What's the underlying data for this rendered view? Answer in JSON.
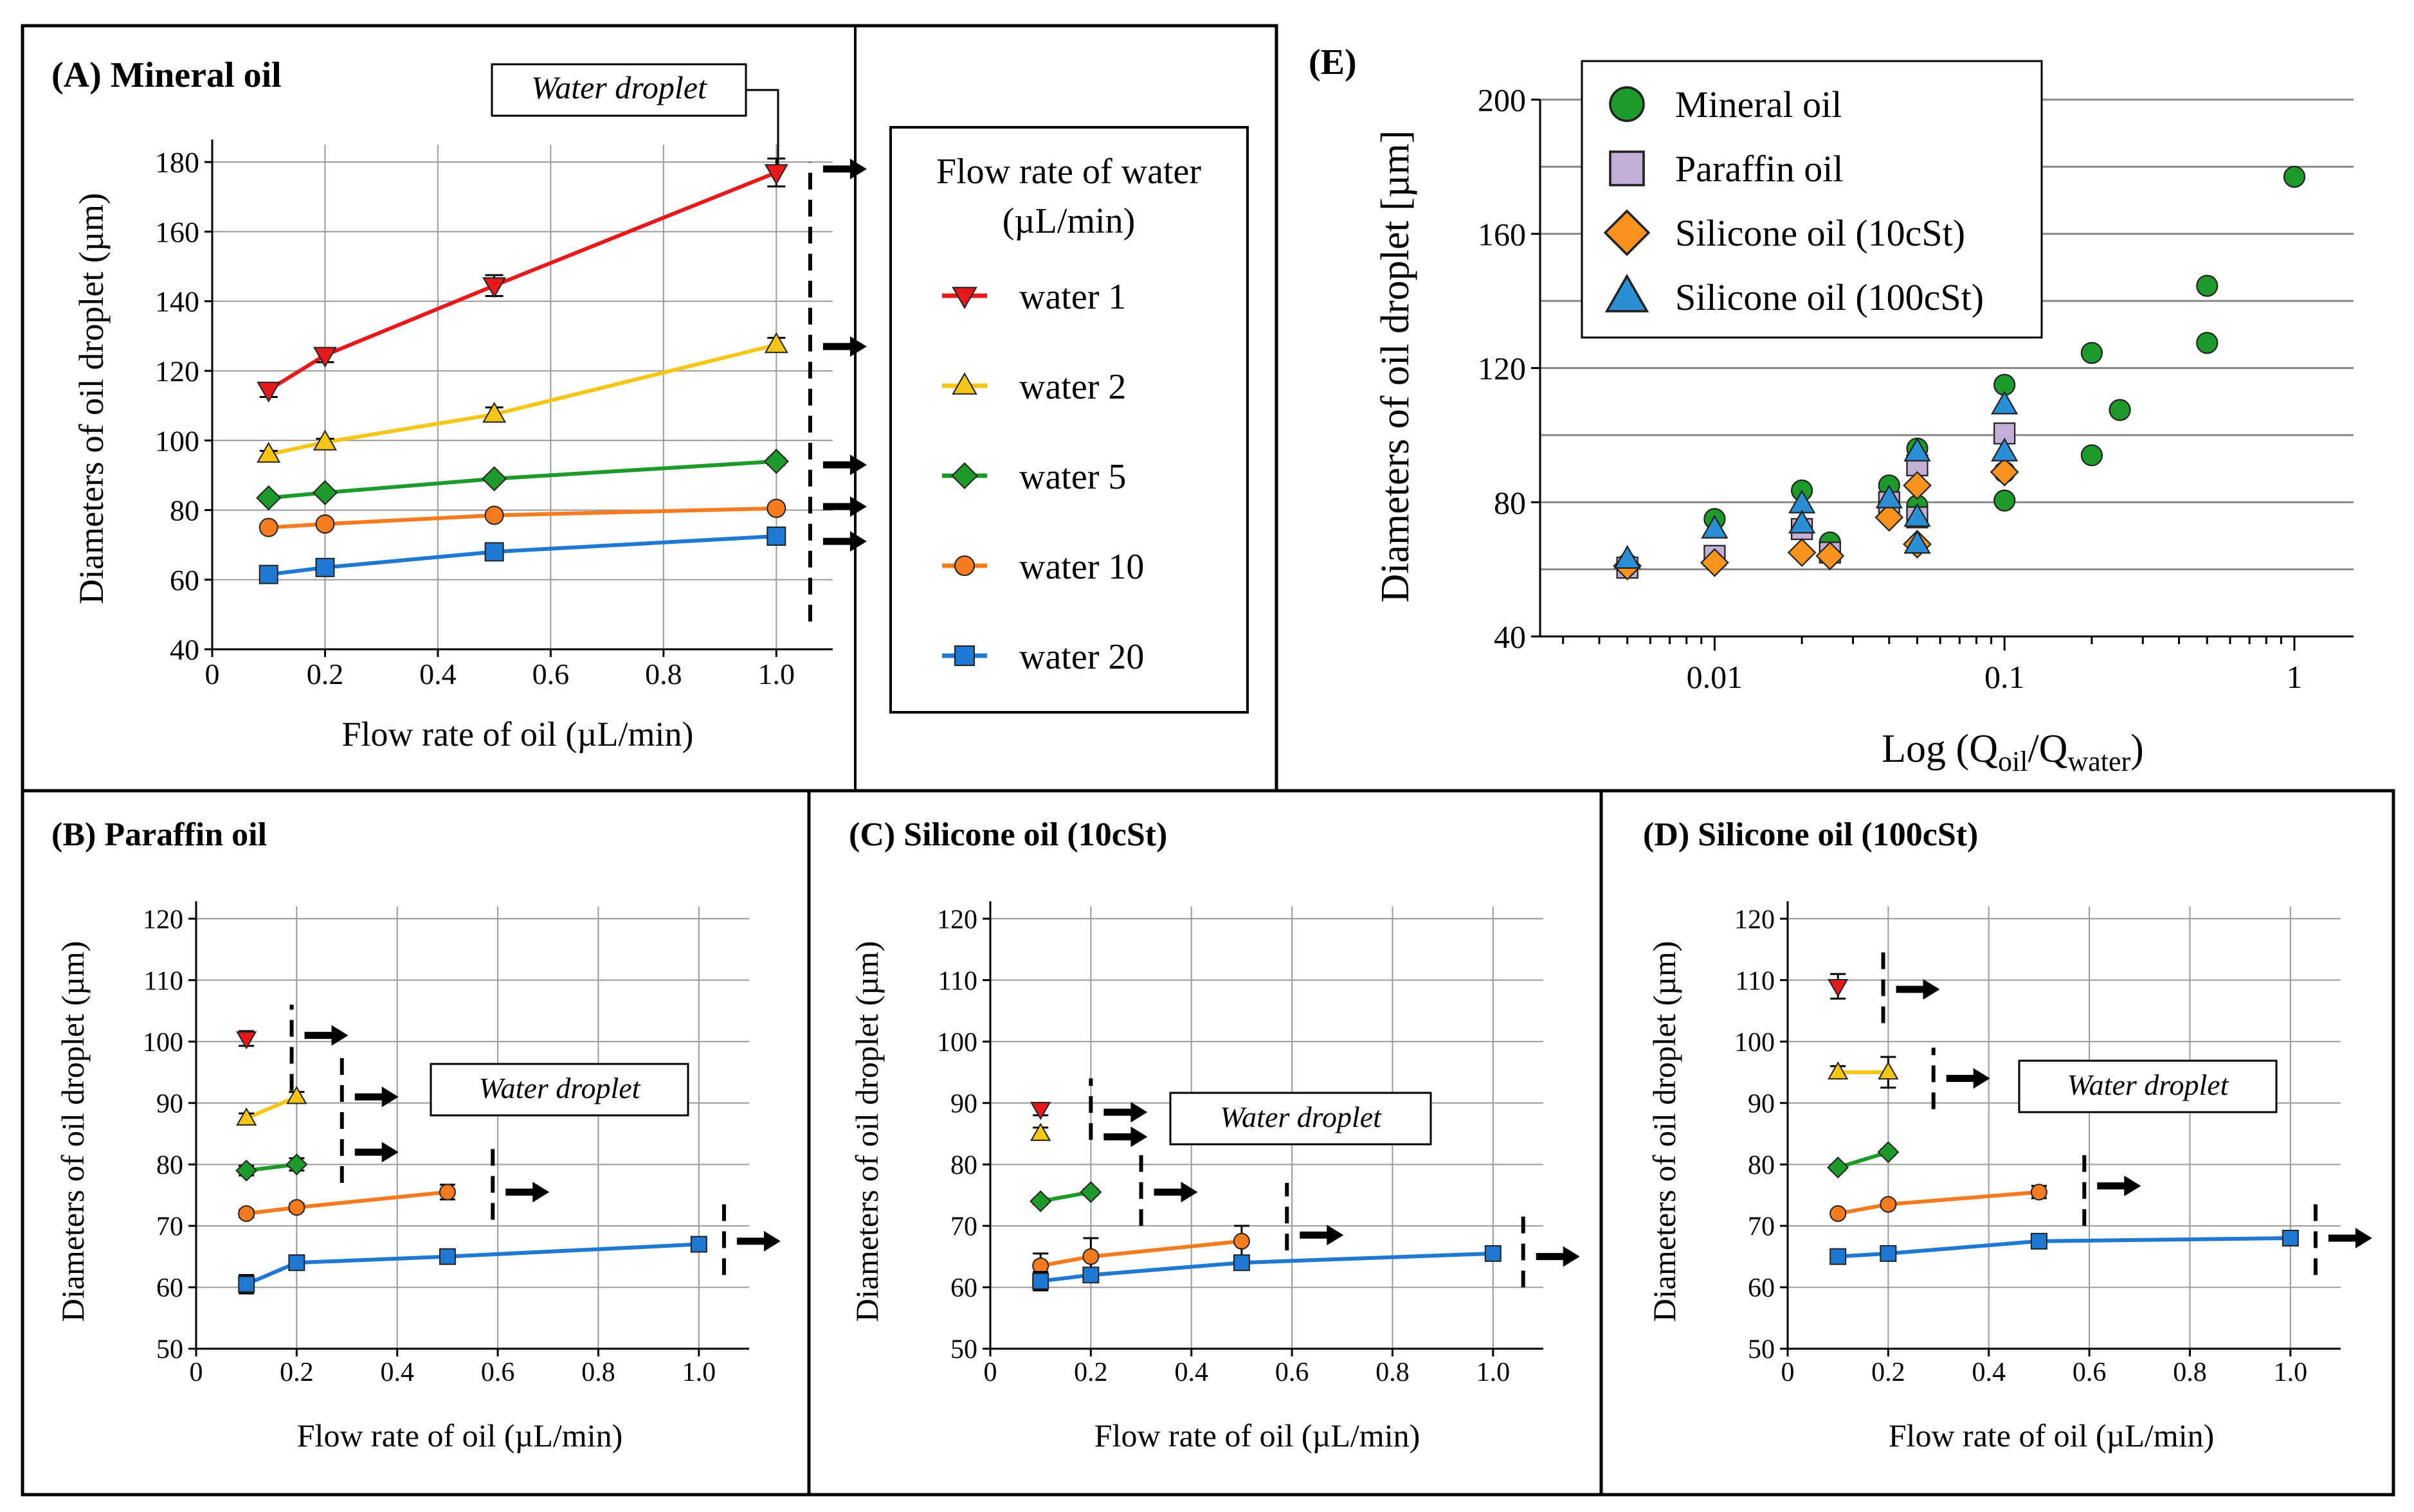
{
  "colors": {
    "water1": "#e41a1c",
    "water2": "#f5c518",
    "water5": "#1e9a2a",
    "water10": "#f47b20",
    "water20": "#1f78d1",
    "mineral": "#1e9a2a",
    "paraffin": "#c2aed6",
    "silicone10": "#f7931e",
    "silicone100": "#2b8fd6",
    "grid": "#9a9a9a"
  },
  "labels": {
    "water_droplet": "Water droplet"
  },
  "legend": {
    "title_line1": "Flow rate of water",
    "title_line2": "(µL/min)",
    "items": [
      {
        "key": "water1",
        "label": "water 1",
        "marker": "tri-down"
      },
      {
        "key": "water2",
        "label": "water 2",
        "marker": "tri-up"
      },
      {
        "key": "water5",
        "label": "water 5",
        "marker": "diamond"
      },
      {
        "key": "water10",
        "label": "water 10",
        "marker": "circle"
      },
      {
        "key": "water20",
        "label": "water 20",
        "marker": "square"
      }
    ]
  },
  "chart_data": [
    {
      "id": "A",
      "type": "line",
      "title": "(A) Mineral oil",
      "xlabel": "Flow rate of oil (µL/min)",
      "ylabel": "Diameters of oil droplet (µm)",
      "xlim": [
        0,
        1.1
      ],
      "ylim": [
        40,
        185
      ],
      "xticks": [
        0,
        0.2,
        0.4,
        0.6,
        0.8,
        1.0
      ],
      "xtick_labels": [
        "0",
        "0.2",
        "0.4",
        "0.6",
        "0.8",
        "1.0"
      ],
      "yticks": [
        40,
        60,
        80,
        100,
        120,
        140,
        160,
        180
      ],
      "ytick_labels": [
        "40",
        "60",
        "80",
        "100",
        "120",
        "140",
        "160",
        "180"
      ],
      "series": [
        {
          "name": "water 1",
          "key": "water1",
          "marker": "tri-down",
          "x": [
            0.1,
            0.2,
            0.5,
            1.0
          ],
          "y": [
            114.5,
            124.5,
            144.5,
            177
          ],
          "err": [
            2,
            2,
            3,
            4
          ]
        },
        {
          "name": "water 2",
          "key": "water2",
          "marker": "tri-up",
          "x": [
            0.1,
            0.2,
            0.5,
            1.0
          ],
          "y": [
            96,
            99.5,
            107.5,
            127.5
          ],
          "err": [
            1,
            1,
            2,
            2
          ]
        },
        {
          "name": "water 5",
          "key": "water5",
          "marker": "diamond",
          "x": [
            0.1,
            0.2,
            0.5,
            1.0
          ],
          "y": [
            83.5,
            85,
            89,
            94
          ],
          "err": [
            0.5,
            0.5,
            0.5,
            1
          ]
        },
        {
          "name": "water 10",
          "key": "water10",
          "marker": "circle",
          "x": [
            0.1,
            0.2,
            0.5,
            1.0
          ],
          "y": [
            75,
            76,
            78.5,
            80.5
          ],
          "err": [
            0.5,
            0.5,
            0.5,
            0.5
          ]
        },
        {
          "name": "water 20",
          "key": "water20",
          "marker": "square",
          "x": [
            0.1,
            0.2,
            0.5,
            1.0
          ],
          "y": [
            61.5,
            63.5,
            68,
            72.5
          ],
          "err": [
            0.5,
            0.5,
            0.5,
            0.5
          ]
        }
      ],
      "transition_lines": [
        {
          "x": 1.06,
          "y": [
            48,
            180
          ],
          "arrow_y": [
            178,
            127,
            93,
            81,
            71
          ]
        }
      ],
      "annotation": "Water droplet"
    },
    {
      "id": "B",
      "type": "line",
      "title": "(B) Paraffin oil",
      "xlabel": "Flow rate of oil (µL/min)",
      "ylabel": "Diameters of oil droplet (µm)",
      "xlim": [
        0,
        1.1
      ],
      "ylim": [
        50,
        122
      ],
      "xticks": [
        0,
        0.2,
        0.4,
        0.6,
        0.8,
        1.0
      ],
      "xtick_labels": [
        "0",
        "0.2",
        "0.4",
        "0.6",
        "0.8",
        "1.0"
      ],
      "yticks": [
        50,
        60,
        70,
        80,
        90,
        100,
        110,
        120
      ],
      "ytick_labels": [
        "50",
        "60",
        "70",
        "80",
        "90",
        "100",
        "110",
        "120"
      ],
      "series": [
        {
          "name": "water 1",
          "key": "water1",
          "marker": "tri-down",
          "x": [
            0.1
          ],
          "y": [
            100.5
          ],
          "err": [
            1.2
          ]
        },
        {
          "name": "water 2",
          "key": "water2",
          "marker": "tri-up",
          "x": [
            0.1,
            0.2
          ],
          "y": [
            87.5,
            91
          ],
          "err": [
            0.8,
            0.8
          ]
        },
        {
          "name": "water 5",
          "key": "water5",
          "marker": "diamond",
          "x": [
            0.1,
            0.2
          ],
          "y": [
            79,
            80
          ],
          "err": [
            0.8,
            1
          ]
        },
        {
          "name": "water 10",
          "key": "water10",
          "marker": "circle",
          "x": [
            0.1,
            0.2,
            0.5
          ],
          "y": [
            72,
            73,
            75.5
          ],
          "err": [
            0.6,
            0.6,
            1.2
          ]
        },
        {
          "name": "water 20",
          "key": "water20",
          "marker": "square",
          "x": [
            0.1,
            0.2,
            0.5,
            1.0
          ],
          "y": [
            60.5,
            64,
            65,
            67
          ],
          "err": [
            1.5,
            1,
            0.8,
            1
          ]
        }
      ],
      "transition_lines": [
        {
          "x": 0.19,
          "y": [
            92,
            106
          ],
          "arrow_y": [
            101
          ]
        },
        {
          "x": 0.29,
          "y": [
            77,
            98
          ],
          "arrow_y": [
            91,
            82
          ]
        },
        {
          "x": 0.59,
          "y": [
            71,
            83
          ],
          "arrow_y": [
            75.5
          ]
        },
        {
          "x": 1.05,
          "y": [
            62,
            74
          ],
          "arrow_y": [
            67.5
          ]
        }
      ],
      "annotation": "Water droplet"
    },
    {
      "id": "C",
      "type": "line",
      "title": "(C) Silicone oil (10cSt)",
      "xlabel": "Flow rate of oil (µL/min)",
      "ylabel": "Diameters of oil droplet (µm)",
      "xlim": [
        0,
        1.1
      ],
      "ylim": [
        50,
        122
      ],
      "xticks": [
        0,
        0.2,
        0.4,
        0.6,
        0.8,
        1.0
      ],
      "xtick_labels": [
        "0",
        "0.2",
        "0.4",
        "0.6",
        "0.8",
        "1.0"
      ],
      "yticks": [
        50,
        60,
        70,
        80,
        90,
        100,
        110,
        120
      ],
      "ytick_labels": [
        "50",
        "60",
        "70",
        "80",
        "90",
        "100",
        "110",
        "120"
      ],
      "series": [
        {
          "name": "water 1",
          "key": "water1",
          "marker": "tri-down",
          "x": [
            0.1
          ],
          "y": [
            89
          ],
          "err": [
            1
          ]
        },
        {
          "name": "water 2",
          "key": "water2",
          "marker": "tri-up",
          "x": [
            0.1
          ],
          "y": [
            85
          ],
          "err": [
            1
          ]
        },
        {
          "name": "water 5",
          "key": "water5",
          "marker": "diamond",
          "x": [
            0.1,
            0.2
          ],
          "y": [
            74,
            75.5
          ],
          "err": [
            0.5,
            0.5
          ]
        },
        {
          "name": "water 10",
          "key": "water10",
          "marker": "circle",
          "x": [
            0.1,
            0.2,
            0.5
          ],
          "y": [
            63.5,
            65,
            67.5
          ],
          "err": [
            2,
            3,
            2.5
          ]
        },
        {
          "name": "water 20",
          "key": "water20",
          "marker": "square",
          "x": [
            0.1,
            0.2,
            0.5,
            1.0
          ],
          "y": [
            61,
            62,
            64,
            65.5
          ],
          "err": [
            1.5,
            1,
            1,
            1
          ]
        }
      ],
      "transition_lines": [
        {
          "x": 0.2,
          "y": [
            84,
            94
          ],
          "arrow_y": [
            88.5,
            84.5
          ]
        },
        {
          "x": 0.3,
          "y": [
            70,
            82
          ],
          "arrow_y": [
            75.5
          ]
        },
        {
          "x": 0.59,
          "y": [
            66,
            77
          ],
          "arrow_y": [
            68.5
          ]
        },
        {
          "x": 1.06,
          "y": [
            60,
            72
          ],
          "arrow_y": [
            65
          ]
        }
      ],
      "annotation": "Water droplet"
    },
    {
      "id": "D",
      "type": "line",
      "title": "(D) Silicone oil (100cSt)",
      "xlabel": "Flow rate of oil (µL/min)",
      "ylabel": "Diameters of oil droplet (µm)",
      "xlim": [
        0,
        1.1
      ],
      "ylim": [
        50,
        122
      ],
      "xticks": [
        0,
        0.2,
        0.4,
        0.6,
        0.8,
        1.0
      ],
      "xtick_labels": [
        "0",
        "0.2",
        "0.4",
        "0.6",
        "0.8",
        "1.0"
      ],
      "yticks": [
        50,
        60,
        70,
        80,
        90,
        100,
        110,
        120
      ],
      "ytick_labels": [
        "50",
        "60",
        "70",
        "80",
        "90",
        "100",
        "110",
        "120"
      ],
      "series": [
        {
          "name": "water 1",
          "key": "water1",
          "marker": "tri-down",
          "x": [
            0.1
          ],
          "y": [
            109
          ],
          "err": [
            2
          ]
        },
        {
          "name": "water 2",
          "key": "water2",
          "marker": "tri-up",
          "x": [
            0.1,
            0.2
          ],
          "y": [
            95,
            95
          ],
          "err": [
            1,
            2.5
          ]
        },
        {
          "name": "water 5",
          "key": "water5",
          "marker": "diamond",
          "x": [
            0.1,
            0.2
          ],
          "y": [
            79.5,
            82
          ],
          "err": [
            0.5,
            0.5
          ]
        },
        {
          "name": "water 10",
          "key": "water10",
          "marker": "circle",
          "x": [
            0.1,
            0.2,
            0.5
          ],
          "y": [
            72,
            73.5,
            75.5
          ],
          "err": [
            0.5,
            0.5,
            1
          ]
        },
        {
          "name": "water 20",
          "key": "water20",
          "marker": "square",
          "x": [
            0.1,
            0.2,
            0.5,
            1.0
          ],
          "y": [
            65,
            65.5,
            67.5,
            68
          ],
          "err": [
            0.5,
            0.5,
            1,
            0.8
          ]
        }
      ],
      "transition_lines": [
        {
          "x": 0.19,
          "y": [
            103,
            115
          ],
          "arrow_y": [
            108.5
          ]
        },
        {
          "x": 0.29,
          "y": [
            89,
            99
          ],
          "arrow_y": [
            94
          ]
        },
        {
          "x": 0.59,
          "y": [
            70,
            82
          ],
          "arrow_y": [
            76.5
          ]
        },
        {
          "x": 1.05,
          "y": [
            62,
            74
          ],
          "arrow_y": [
            68
          ]
        }
      ],
      "annotation": "Water droplet"
    },
    {
      "id": "E",
      "type": "scatter",
      "title": "(E)",
      "xlabel_main": "Log (Q",
      "xlabel_sub1": "oil",
      "xlabel_mid": "/Q",
      "xlabel_sub2": "water",
      "xlabel_end": ")",
      "ylabel": "Diameters of oil droplet [µm]",
      "xscale": "log",
      "xlim": [
        0.0025,
        1.6
      ],
      "ylim": [
        40,
        200
      ],
      "xticks": [
        0.01,
        0.1,
        1
      ],
      "xtick_labels": [
        "0.01",
        "0.1",
        "1"
      ],
      "yticks": [
        40,
        80,
        120,
        160,
        200
      ],
      "ytick_labels": [
        "40",
        "80",
        "120",
        "160",
        "200"
      ],
      "grid_y": [
        60,
        80,
        100,
        120,
        140,
        160,
        180,
        200
      ],
      "legend_placement": "top-left",
      "series": [
        {
          "name": "Mineral oil",
          "key": "mineral",
          "marker": "circle",
          "x": [
            0.005,
            0.01,
            0.02,
            0.025,
            0.04,
            0.05,
            0.05,
            0.1,
            0.1,
            0.1,
            0.2,
            0.2,
            0.25,
            0.5,
            0.5,
            1.0
          ],
          "y": [
            61.5,
            75,
            83.5,
            68,
            85,
            96,
            79,
            115,
            89,
            80.5,
            124.5,
            94,
            107.5,
            144.5,
            127.5,
            177
          ]
        },
        {
          "name": "Paraffin oil",
          "key": "paraffin",
          "marker": "square",
          "x": [
            0.005,
            0.01,
            0.02,
            0.025,
            0.04,
            0.05,
            0.05,
            0.1
          ],
          "y": [
            60.5,
            64,
            72,
            65,
            80,
            91,
            75.5,
            100.5
          ]
        },
        {
          "name": "Silicone oil (10cSt)",
          "key": "silicone10",
          "marker": "diamond",
          "x": [
            0.005,
            0.01,
            0.02,
            0.025,
            0.04,
            0.05,
            0.05,
            0.1,
            0.1
          ],
          "y": [
            61,
            62,
            65,
            64,
            75.5,
            85,
            67.5,
            89,
            89
          ]
        },
        {
          "name": "Silicone oil (100cSt)",
          "key": "silicone100",
          "marker": "tri-up",
          "x": [
            0.005,
            0.01,
            0.02,
            0.02,
            0.04,
            0.05,
            0.05,
            0.05,
            0.1,
            0.1
          ],
          "y": [
            63,
            72,
            79.5,
            73.5,
            81,
            95,
            75.5,
            67.5,
            109,
            95
          ]
        }
      ]
    }
  ]
}
